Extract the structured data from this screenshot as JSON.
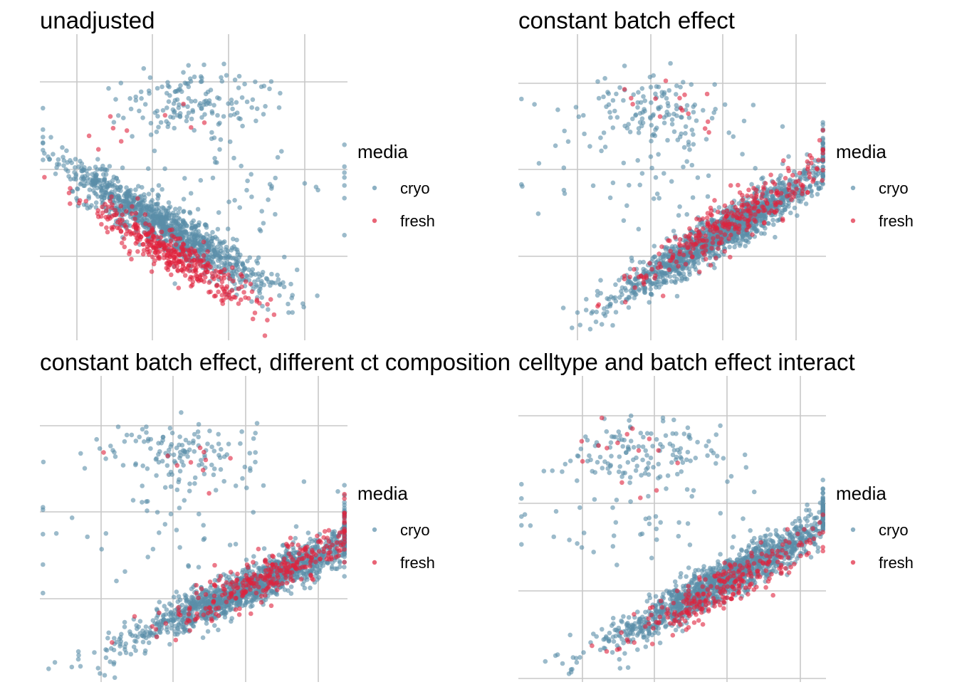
{
  "figure": {
    "colors": {
      "cryo": "#5a8ea9",
      "fresh": "#e0223c",
      "grid": "#c8c8c8"
    },
    "legend": {
      "title": "media",
      "entries": [
        {
          "label": "cryo",
          "color": "#5a8ea9"
        },
        {
          "label": "fresh",
          "color": "#e0223c"
        }
      ]
    }
  },
  "chart_data": [
    {
      "type": "scatter",
      "title": "unadjusted",
      "xlabel": "",
      "ylabel": "",
      "xlim": [
        0,
        10
      ],
      "ylim": [
        0,
        10
      ],
      "grid": true,
      "legend_position": "right",
      "series": [
        {
          "name": "cryo",
          "clusters": [
            {
              "center": [
                4.0,
                3.8
              ],
              "count": 1100,
              "slope": -0.6,
              "spread_major": 1.9,
              "spread_minor": 0.32,
              "seed": 11
            },
            {
              "center": [
                5.0,
                7.8
              ],
              "count": 150,
              "slope": 0.05,
              "spread_major": 1.2,
              "spread_minor": 0.5,
              "seed": 12
            },
            {
              "center": [
                5.6,
                4.9
              ],
              "count": 60,
              "slope": 0.0,
              "spread_major": 2.6,
              "spread_minor": 1.1,
              "seed": 13
            }
          ]
        },
        {
          "name": "fresh",
          "clusters": [
            {
              "center": [
                4.3,
                2.8
              ],
              "count": 380,
              "slope": -0.6,
              "spread_major": 1.6,
              "spread_minor": 0.3,
              "seed": 14
            },
            {
              "center": [
                3.3,
                7.0
              ],
              "count": 10,
              "slope": 0.0,
              "spread_major": 1.0,
              "spread_minor": 0.6,
              "seed": 15
            }
          ]
        }
      ]
    },
    {
      "type": "scatter",
      "title": "constant batch effect",
      "xlabel": "",
      "ylabel": "",
      "xlim": [
        0,
        10
      ],
      "ylim": [
        0,
        10
      ],
      "grid": true,
      "legend_position": "right",
      "series": [
        {
          "name": "cryo",
          "clusters": [
            {
              "center": [
                6.6,
                3.5
              ],
              "count": 1400,
              "slope": 0.62,
              "spread_major": 2.0,
              "spread_minor": 0.3,
              "seed": 21
            },
            {
              "center": [
                4.2,
                7.5
              ],
              "count": 140,
              "slope": 0.0,
              "spread_major": 1.4,
              "spread_minor": 0.55,
              "seed": 22
            },
            {
              "center": [
                3.5,
                5.0
              ],
              "count": 45,
              "slope": 0.0,
              "spread_major": 2.4,
              "spread_minor": 0.9,
              "seed": 23
            }
          ]
        },
        {
          "name": "fresh",
          "clusters": [
            {
              "center": [
                6.8,
                3.8
              ],
              "count": 300,
              "slope": 0.62,
              "spread_major": 1.8,
              "spread_minor": 0.32,
              "seed": 24
            },
            {
              "center": [
                4.8,
                7.6
              ],
              "count": 15,
              "slope": 0.0,
              "spread_major": 1.0,
              "spread_minor": 0.55,
              "seed": 25
            }
          ]
        }
      ]
    },
    {
      "type": "scatter",
      "title": "constant batch effect, different ct composition",
      "xlabel": "",
      "ylabel": "",
      "xlim": [
        0,
        10
      ],
      "ylim": [
        0,
        10
      ],
      "grid": true,
      "legend_position": "right",
      "series": [
        {
          "name": "cryo",
          "clusters": [
            {
              "center": [
                7.0,
                3.2
              ],
              "count": 1400,
              "slope": 0.45,
              "spread_major": 2.2,
              "spread_minor": 0.3,
              "seed": 31
            },
            {
              "center": [
                4.5,
                7.5
              ],
              "count": 130,
              "slope": 0.0,
              "spread_major": 1.4,
              "spread_minor": 0.55,
              "seed": 32
            },
            {
              "center": [
                3.5,
                5.0
              ],
              "count": 45,
              "slope": 0.0,
              "spread_major": 2.5,
              "spread_minor": 0.9,
              "seed": 33
            }
          ]
        },
        {
          "name": "fresh",
          "clusters": [
            {
              "center": [
                7.3,
                3.4
              ],
              "count": 300,
              "slope": 0.45,
              "spread_major": 1.8,
              "spread_minor": 0.32,
              "seed": 34
            },
            {
              "center": [
                5.2,
                7.2
              ],
              "count": 10,
              "slope": 0.0,
              "spread_major": 1.0,
              "spread_minor": 0.5,
              "seed": 35
            }
          ]
        }
      ]
    },
    {
      "type": "scatter",
      "title": "celltype and batch effect interact",
      "xlabel": "",
      "ylabel": "",
      "xlim": [
        0,
        10
      ],
      "ylim": [
        0,
        10
      ],
      "grid": true,
      "legend_position": "right",
      "series": [
        {
          "name": "cryo",
          "clusters": [
            {
              "center": [
                6.8,
                3.4
              ],
              "count": 1400,
              "slope": 0.55,
              "spread_major": 2.1,
              "spread_minor": 0.3,
              "seed": 41
            },
            {
              "center": [
                4.0,
                7.5
              ],
              "count": 140,
              "slope": 0.0,
              "spread_major": 1.4,
              "spread_minor": 0.55,
              "seed": 42
            },
            {
              "center": [
                3.2,
                5.0
              ],
              "count": 45,
              "slope": 0.0,
              "spread_major": 2.4,
              "spread_minor": 0.9,
              "seed": 43
            }
          ]
        },
        {
          "name": "fresh",
          "clusters": [
            {
              "center": [
                6.6,
                3.0
              ],
              "count": 260,
              "slope": 0.55,
              "spread_major": 1.8,
              "spread_minor": 0.3,
              "seed": 44
            },
            {
              "center": [
                3.2,
                7.4
              ],
              "count": 15,
              "slope": 0.0,
              "spread_major": 0.9,
              "spread_minor": 0.5,
              "seed": 45
            }
          ]
        }
      ]
    }
  ]
}
